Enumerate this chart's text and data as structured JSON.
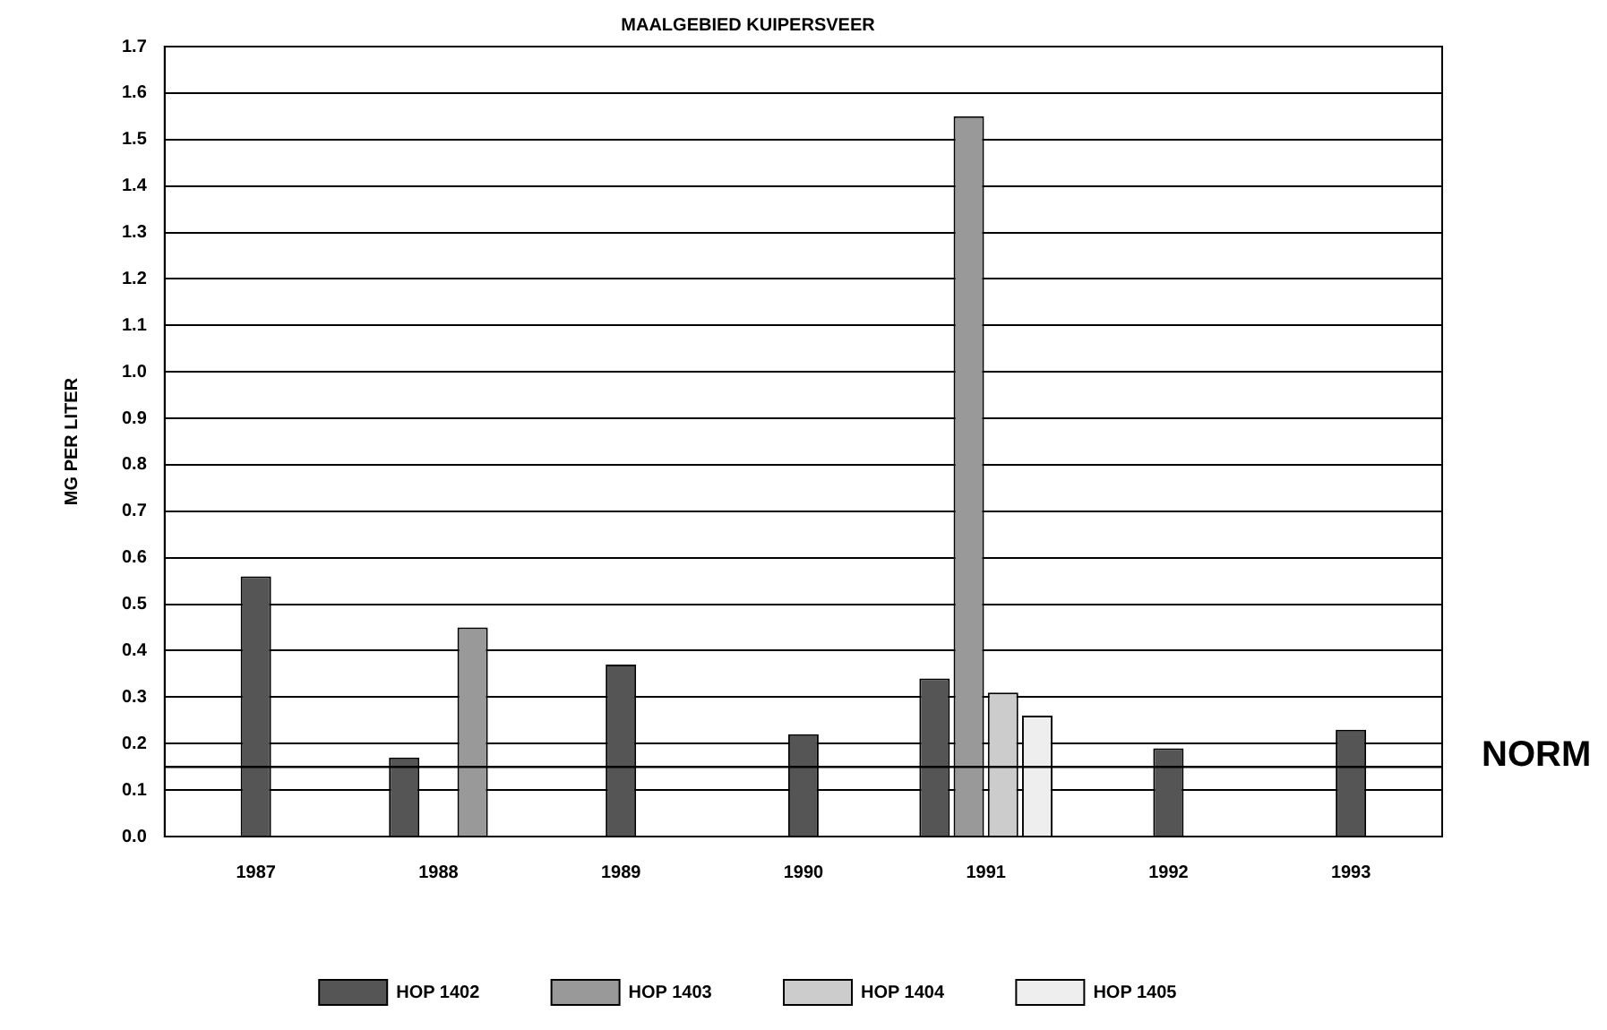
{
  "chart_data": {
    "type": "bar",
    "title": "MAALGEBIED KUIPERSVEER",
    "ylabel": "MG PER LITER",
    "categories": [
      "1987",
      "1988",
      "1989",
      "1990",
      "1991",
      "1992",
      "1993"
    ],
    "series": [
      {
        "name": "HOP 1402",
        "color": "#555555",
        "values": [
          0.56,
          0.17,
          0.37,
          0.22,
          0.34,
          0.19,
          0.23
        ]
      },
      {
        "name": "HOP 1403",
        "color": "#999999",
        "values": [
          null,
          0.45,
          null,
          null,
          1.55,
          null,
          null
        ]
      },
      {
        "name": "HOP 1404",
        "color": "#cccccc",
        "values": [
          null,
          null,
          null,
          null,
          0.31,
          null,
          null
        ]
      },
      {
        "name": "HOP 1405",
        "color": "#eeeeee",
        "values": [
          null,
          null,
          null,
          null,
          0.26,
          null,
          null
        ]
      }
    ],
    "ylim": [
      0,
      1.7
    ],
    "yticks": [
      {
        "value": 0,
        "label": "0.0"
      },
      0.1,
      0.2,
      0.3,
      0.4,
      0.5,
      0.6,
      0.7,
      0.8,
      0.9,
      {
        "value": 1,
        "label": "1.0"
      },
      1.1,
      1.2,
      1.3,
      1.4,
      1.5,
      1.6,
      1.7
    ],
    "ref_lines": [
      {
        "axis": "y",
        "value": 0.15,
        "label": "NORM"
      }
    ],
    "grid": "y",
    "legend": "bottom"
  }
}
